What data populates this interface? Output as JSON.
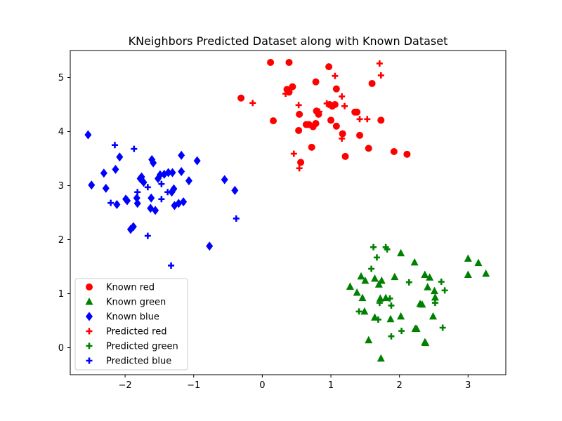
{
  "chart_data": {
    "type": "scatter",
    "title": "KNeighbors Predicted Dataset along with Known Dataset",
    "xlabel": "",
    "ylabel": "",
    "xlim": [
      -2.8,
      3.55
    ],
    "ylim": [
      -0.5,
      5.5
    ],
    "xticks": [
      -2,
      -1,
      0,
      1,
      2,
      3
    ],
    "yticks": [
      0,
      1,
      2,
      3,
      4,
      5
    ],
    "xtick_labels": [
      "−2",
      "−1",
      "0",
      "1",
      "2",
      "3"
    ],
    "ytick_labels": [
      "0",
      "1",
      "2",
      "3",
      "4",
      "5"
    ],
    "grid": false,
    "legend_position": "lower-left",
    "series": [
      {
        "name": "Known red",
        "marker": "circle",
        "color": "#ff0000",
        "points": [
          [
            0.12,
            5.28
          ],
          [
            0.39,
            5.28
          ],
          [
            0.97,
            5.2
          ],
          [
            -0.31,
            4.62
          ],
          [
            0.36,
            4.78
          ],
          [
            0.44,
            4.83
          ],
          [
            0.39,
            4.73
          ],
          [
            0.78,
            4.92
          ],
          [
            1.08,
            4.79
          ],
          [
            1.6,
            4.89
          ],
          [
            0.98,
            4.5
          ],
          [
            1.02,
            4.47
          ],
          [
            1.06,
            4.5
          ],
          [
            1.35,
            4.36
          ],
          [
            1.38,
            4.36
          ],
          [
            0.79,
            4.38
          ],
          [
            0.82,
            4.32
          ],
          [
            0.54,
            4.32
          ],
          [
            0.16,
            4.2
          ],
          [
            1.0,
            4.21
          ],
          [
            0.64,
            4.13
          ],
          [
            0.68,
            4.13
          ],
          [
            0.74,
            4.09
          ],
          [
            0.78,
            4.15
          ],
          [
            1.08,
            4.1
          ],
          [
            1.73,
            4.21
          ],
          [
            0.53,
            4.02
          ],
          [
            1.17,
            3.96
          ],
          [
            1.42,
            3.93
          ],
          [
            0.72,
            3.71
          ],
          [
            1.55,
            3.69
          ],
          [
            1.92,
            3.63
          ],
          [
            2.11,
            3.58
          ],
          [
            1.21,
            3.54
          ],
          [
            0.56,
            3.43
          ]
        ]
      },
      {
        "name": "Known green",
        "marker": "triangle",
        "color": "#008000",
        "points": [
          [
            3.0,
            1.65
          ],
          [
            3.15,
            1.57
          ],
          [
            3.26,
            1.37
          ],
          [
            3.0,
            1.35
          ],
          [
            2.02,
            1.75
          ],
          [
            2.22,
            1.58
          ],
          [
            1.64,
            1.28
          ],
          [
            1.7,
            1.17
          ],
          [
            1.74,
            1.24
          ],
          [
            1.93,
            1.31
          ],
          [
            2.37,
            1.35
          ],
          [
            2.44,
            1.3
          ],
          [
            1.44,
            1.32
          ],
          [
            1.5,
            1.24
          ],
          [
            1.28,
            1.13
          ],
          [
            2.41,
            1.12
          ],
          [
            2.51,
            1.05
          ],
          [
            1.38,
            1.02
          ],
          [
            1.46,
            0.92
          ],
          [
            1.72,
            0.91
          ],
          [
            1.8,
            0.92
          ],
          [
            2.3,
            0.81
          ],
          [
            2.33,
            0.8
          ],
          [
            2.52,
            0.93
          ],
          [
            1.49,
            0.67
          ],
          [
            1.87,
            0.53
          ],
          [
            2.02,
            0.58
          ],
          [
            2.49,
            0.58
          ],
          [
            1.64,
            0.56
          ],
          [
            2.23,
            0.35
          ],
          [
            2.25,
            0.35
          ],
          [
            1.55,
            0.14
          ],
          [
            2.37,
            0.1
          ],
          [
            2.38,
            0.09
          ],
          [
            1.73,
            -0.2
          ]
        ]
      },
      {
        "name": "Known blue",
        "marker": "diamond",
        "color": "#0000ff",
        "points": [
          [
            -2.54,
            3.94
          ],
          [
            -2.49,
            3.01
          ],
          [
            -2.31,
            3.23
          ],
          [
            -2.28,
            2.95
          ],
          [
            -2.14,
            3.3
          ],
          [
            -2.08,
            3.53
          ],
          [
            -1.97,
            2.72
          ],
          [
            -1.99,
            2.75
          ],
          [
            -2.12,
            2.65
          ],
          [
            -1.92,
            2.19
          ],
          [
            -1.88,
            2.24
          ],
          [
            -1.82,
            2.67
          ],
          [
            -1.83,
            2.77
          ],
          [
            -1.78,
            3.13
          ],
          [
            -1.76,
            3.16
          ],
          [
            -1.73,
            3.06
          ],
          [
            -1.61,
            3.48
          ],
          [
            -1.59,
            3.42
          ],
          [
            -1.62,
            2.77
          ],
          [
            -1.63,
            2.58
          ],
          [
            -1.56,
            2.54
          ],
          [
            -1.52,
            3.13
          ],
          [
            -1.49,
            3.2
          ],
          [
            -1.43,
            3.21
          ],
          [
            -1.37,
            3.24
          ],
          [
            -1.31,
            3.24
          ],
          [
            -1.29,
            2.94
          ],
          [
            -1.32,
            2.88
          ],
          [
            -1.28,
            2.63
          ],
          [
            -1.22,
            2.67
          ],
          [
            -1.15,
            2.7
          ],
          [
            -1.18,
            3.26
          ],
          [
            -1.18,
            3.56
          ],
          [
            -1.07,
            3.09
          ],
          [
            -0.95,
            3.46
          ],
          [
            -0.77,
            1.88
          ],
          [
            -0.55,
            3.11
          ],
          [
            -0.4,
            2.91
          ]
        ]
      },
      {
        "name": "Predicted red",
        "marker": "plus",
        "color": "#ff0000",
        "points": [
          [
            1.71,
            5.26
          ],
          [
            1.06,
            5.03
          ],
          [
            1.73,
            5.04
          ],
          [
            0.34,
            4.7
          ],
          [
            -0.14,
            4.53
          ],
          [
            0.53,
            4.49
          ],
          [
            0.94,
            4.52
          ],
          [
            1.16,
            4.65
          ],
          [
            1.2,
            4.47
          ],
          [
            0.83,
            4.37
          ],
          [
            1.42,
            4.23
          ],
          [
            1.53,
            4.23
          ],
          [
            1.16,
            3.87
          ],
          [
            0.46,
            3.59
          ],
          [
            0.54,
            3.32
          ]
        ]
      },
      {
        "name": "Predicted green",
        "marker": "plus",
        "color": "#008000",
        "points": [
          [
            1.62,
            1.86
          ],
          [
            1.8,
            1.86
          ],
          [
            1.82,
            1.82
          ],
          [
            1.67,
            1.67
          ],
          [
            1.59,
            1.46
          ],
          [
            2.14,
            1.21
          ],
          [
            2.61,
            1.22
          ],
          [
            2.66,
            1.06
          ],
          [
            1.86,
            0.91
          ],
          [
            2.52,
            0.83
          ],
          [
            1.71,
            0.83
          ],
          [
            1.88,
            0.78
          ],
          [
            1.41,
            0.67
          ],
          [
            1.69,
            0.52
          ],
          [
            2.03,
            0.31
          ],
          [
            2.63,
            0.37
          ],
          [
            1.88,
            0.21
          ]
        ]
      },
      {
        "name": "Predicted blue",
        "marker": "plus",
        "color": "#0000ff",
        "points": [
          [
            -2.15,
            3.75
          ],
          [
            -1.87,
            3.68
          ],
          [
            -1.67,
            2.97
          ],
          [
            -1.47,
            3.03
          ],
          [
            -1.82,
            2.88
          ],
          [
            -1.38,
            2.88
          ],
          [
            -1.47,
            2.75
          ],
          [
            -2.21,
            2.68
          ],
          [
            -1.67,
            2.07
          ],
          [
            -0.38,
            2.39
          ],
          [
            -1.33,
            1.52
          ]
        ]
      }
    ]
  }
}
